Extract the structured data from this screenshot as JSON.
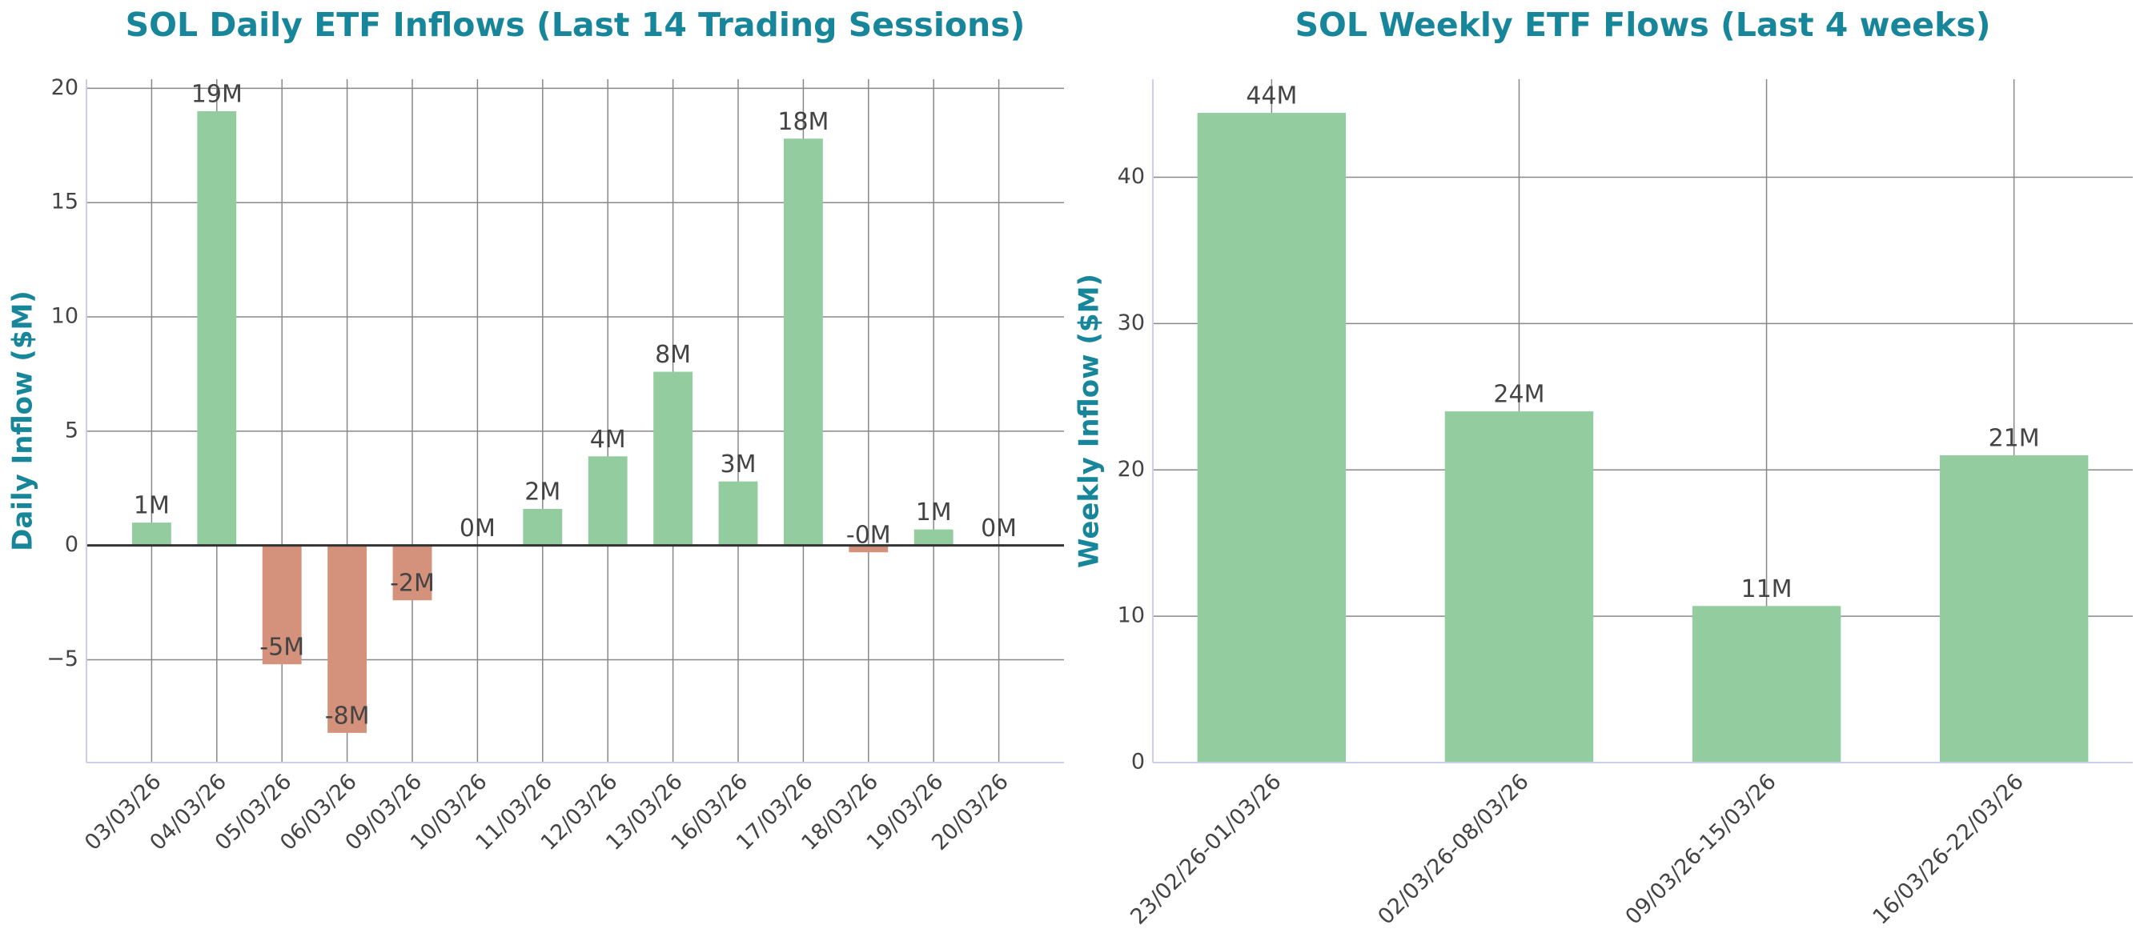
{
  "chart_data": [
    {
      "type": "bar",
      "title": "SOL Daily ETF Inflows (Last 14 Trading Sessions)",
      "y_label": "Daily Inflow ($M)",
      "categories": [
        "03/03/26",
        "04/03/26",
        "05/03/26",
        "06/03/26",
        "09/03/26",
        "10/03/26",
        "11/03/26",
        "12/03/26",
        "13/03/26",
        "16/03/26",
        "17/03/26",
        "18/03/26",
        "19/03/26",
        "20/03/26"
      ],
      "values": [
        1.0,
        19.0,
        -5.2,
        -8.2,
        -2.4,
        0,
        1.6,
        3.9,
        7.6,
        2.8,
        17.8,
        -0.3,
        0.7,
        0
      ],
      "value_labels": [
        "1M",
        "19M",
        "-5M",
        "-8M",
        "-2M",
        "0M",
        "2M",
        "4M",
        "8M",
        "3M",
        "18M",
        "-0M",
        "1M",
        "0M"
      ],
      "color": "#93cd9f",
      "negative_color": "#d4917b",
      "ylim": [
        -9.5,
        20.4
      ],
      "yticks": [
        {
          "value": -5,
          "label": "−5"
        },
        0,
        5,
        10,
        15,
        20
      ],
      "grid": true
    },
    {
      "type": "bar",
      "title": "SOL Weekly ETF Flows (Last 4 weeks)",
      "y_label": "Weekly Inflow ($M)",
      "categories": [
        "23/02/26-01/03/26",
        "02/03/26-08/03/26",
        "09/03/26-15/03/26",
        "16/03/26-22/03/26"
      ],
      "values": [
        44.4,
        24.0,
        10.7,
        21.0
      ],
      "value_labels": [
        "44M",
        "24M",
        "11M",
        "21M"
      ],
      "color": "#93cd9f",
      "ylim": [
        0,
        46.7
      ],
      "yticks": [
        0,
        10,
        20,
        30,
        40
      ],
      "grid": true
    }
  ]
}
